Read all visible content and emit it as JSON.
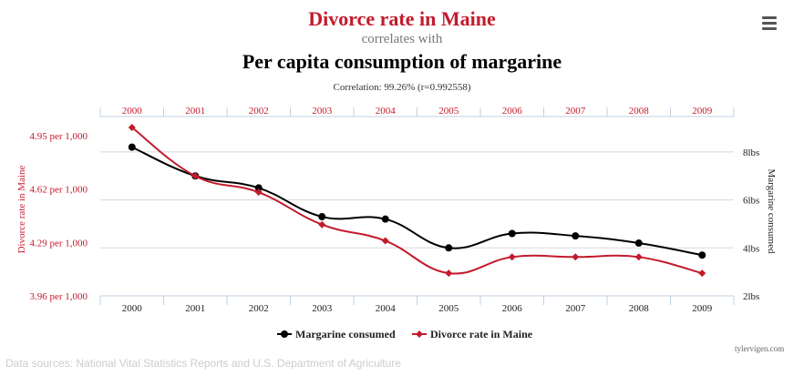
{
  "header": {
    "title": "Divorce rate in Maine",
    "subtitle": "correlates with",
    "title2": "Per capita consumption of margarine",
    "correlation": "Correlation: 99.26% (r=0.992558)"
  },
  "footer": {
    "sources": "Data sources: National Vital Statistics Reports and U.S. Department of Agriculture",
    "credit": "tylervigen.com"
  },
  "chart_data": {
    "type": "line",
    "x": [
      "2000",
      "2001",
      "2002",
      "2003",
      "2004",
      "2005",
      "2006",
      "2007",
      "2008",
      "2009"
    ],
    "series": [
      {
        "name": "Margarine consumed",
        "axis": "right",
        "color": "#000000",
        "marker": "circle",
        "values": [
          8.2,
          7.0,
          6.5,
          5.3,
          5.2,
          4.0,
          4.6,
          4.5,
          4.2,
          3.7
        ]
      },
      {
        "name": "Divorce rate in Maine",
        "axis": "left",
        "color": "#c21b2c",
        "marker": "diamond",
        "values": [
          5.0,
          4.7,
          4.6,
          4.4,
          4.3,
          4.1,
          4.2,
          4.2,
          4.2,
          4.1
        ]
      }
    ],
    "left_axis": {
      "label": "Divorce rate in Maine",
      "ticks": [
        "3.96 per 1,000",
        "4.29 per 1,000",
        "4.62 per 1,000",
        "4.95 per 1,000"
      ],
      "tick_values": [
        3.96,
        4.29,
        4.62,
        4.95
      ],
      "range": [
        3.96,
        5.06
      ]
    },
    "right_axis": {
      "label": "Margarine consumed",
      "ticks": [
        "2lbs",
        "4lbs",
        "6lbs",
        "8lbs"
      ],
      "tick_values": [
        2,
        4,
        6,
        8
      ],
      "range": [
        2,
        9.5
      ]
    },
    "legend_placement": "bottom-center",
    "grid": true
  }
}
